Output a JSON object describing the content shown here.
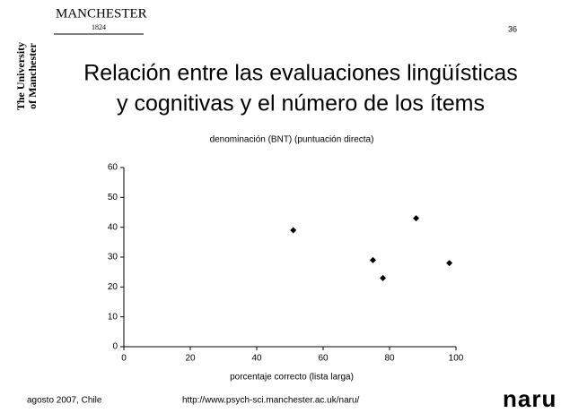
{
  "header": {
    "logo": "MANCHESTER",
    "logo_year": "1824",
    "side_text_1": "The University",
    "side_text_2": "of Manchester",
    "page_number": "36"
  },
  "title_lines": [
    "Relación entre las evaluaciones lingüísticas",
    "y cognitivas y el número de los ítems"
  ],
  "chart_data": {
    "type": "scatter",
    "title": "denominación (BNT) (puntuación directa)",
    "x_label": "porcentaje correcto (lista larga)",
    "x": [
      51,
      75,
      78,
      88,
      98
    ],
    "values": [
      39,
      29,
      23,
      43,
      28
    ],
    "color": "#000000",
    "xlim": [
      0,
      100
    ],
    "xticks": [
      0,
      20,
      40,
      60,
      80,
      100
    ],
    "ylim": [
      0,
      60
    ],
    "yticks": [
      0,
      10,
      20,
      30,
      40,
      50,
      60
    ],
    "grid": false
  },
  "footer": {
    "left": "agosto 2007, Chile",
    "url": "http://www.psych-sci.manchester.ac.uk/naru/",
    "logo": "naru"
  }
}
